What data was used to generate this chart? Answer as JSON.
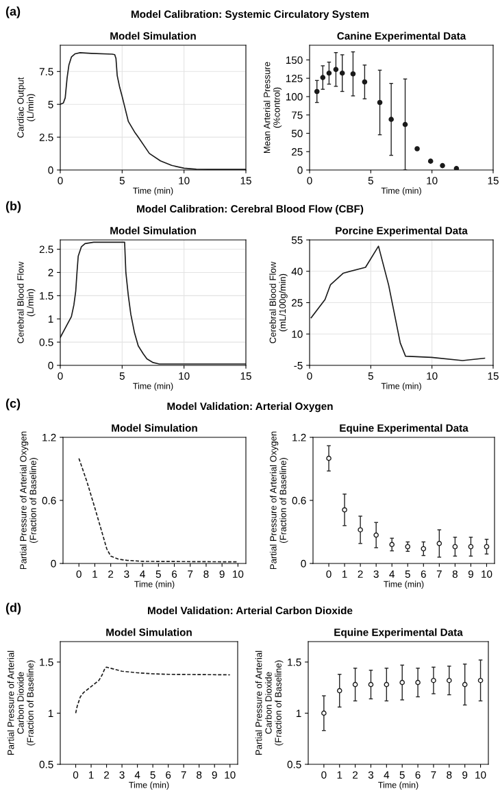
{
  "chart_data": [
    {
      "type": "line",
      "title": "Model Simulation",
      "xlabel": "Time (min)",
      "ylabel": "Cardiac Output\n(L/min)",
      "annotations": [
        "(a)",
        "Model Calibration: Systemic Circulatory System"
      ],
      "xlim": [
        0,
        15
      ],
      "ylim": [
        0,
        9.5
      ],
      "xticks": [
        0,
        5,
        10,
        15
      ],
      "yticks": [
        0,
        2.5,
        5,
        7.5
      ],
      "grid": true,
      "line_style": "solid",
      "series": [
        {
          "color": "#1a1a1a",
          "x": [
            0,
            0.25,
            0.4,
            0.55,
            0.7,
            0.9,
            1.2,
            1.6,
            2.5,
            4.2,
            4.4,
            4.5,
            4.6,
            4.8,
            5,
            5.5,
            6,
            6.3,
            7.2,
            8.1,
            9,
            10,
            11,
            12,
            15
          ],
          "values": [
            5.0,
            5.1,
            5.5,
            7.0,
            8.0,
            8.6,
            8.85,
            8.93,
            8.88,
            8.82,
            8.78,
            8.5,
            7.2,
            6.3,
            5.6,
            3.7,
            2.9,
            2.5,
            1.26,
            0.69,
            0.35,
            0.14,
            0.06,
            0.05,
            0.05
          ]
        }
      ]
    },
    {
      "type": "scatter",
      "title": "Canine Experimental Data",
      "xlabel": "Time (min)",
      "ylabel": "Mean Arterial Pressure\n(%control)",
      "xlim": [
        0,
        15
      ],
      "ylim": [
        0,
        170
      ],
      "xticks": [
        0,
        5,
        10,
        15
      ],
      "yticks": [
        0,
        25,
        50,
        75,
        100,
        125,
        150
      ],
      "grid": false,
      "marker": "circle",
      "series": [
        {
          "color": "#1a1a1a",
          "x": [
            0.6,
            1.08,
            1.59,
            2.15,
            2.67,
            3.55,
            4.5,
            5.74,
            6.67,
            7.81,
            8.79,
            9.89,
            10.86,
            12.0
          ],
          "values": [
            107,
            126,
            132,
            137,
            132,
            131,
            120,
            92,
            69,
            62,
            29,
            12,
            6,
            2
          ],
          "errors": [
            15,
            16,
            15,
            23,
            25,
            30,
            23,
            44,
            49,
            62,
            null,
            null,
            null,
            null
          ]
        }
      ]
    },
    {
      "type": "line",
      "title": "Model Simulation",
      "xlabel": "Time (min)",
      "ylabel": "Cerebral Blood Flow\n(L/min)",
      "annotations": [
        "(b)",
        "Model Calibration: Cerebral Blood Flow (CBF)"
      ],
      "xlim": [
        0,
        15
      ],
      "ylim": [
        0,
        2.7
      ],
      "xticks": [
        0,
        5,
        10,
        15
      ],
      "yticks": [
        0,
        0.5,
        1,
        1.5,
        2,
        2.5
      ],
      "grid": true,
      "line_style": "solid",
      "series": [
        {
          "color": "#1a1a1a",
          "x": [
            0,
            0.5,
            0.9,
            1.1,
            1.25,
            1.35,
            1.45,
            1.7,
            2.0,
            2.7,
            5.2,
            5.3,
            5.5,
            5.7,
            6.0,
            6.3,
            6.7,
            7.0,
            7.5,
            8,
            15
          ],
          "values": [
            0.6,
            0.85,
            1.05,
            1.3,
            1.6,
            2.0,
            2.35,
            2.55,
            2.62,
            2.65,
            2.65,
            2.0,
            1.5,
            1.1,
            0.7,
            0.42,
            0.25,
            0.14,
            0.06,
            0.03,
            0.03
          ]
        }
      ]
    },
    {
      "type": "line",
      "title": "Porcine Experimental Data",
      "xlabel": "Time (min)",
      "ylabel": "Cerebral Blood Flow\n(mL/100g/min)",
      "xlim": [
        0,
        15
      ],
      "ylim": [
        -5,
        55
      ],
      "xticks": [
        0,
        5,
        10,
        15
      ],
      "yticks": [
        -5,
        10,
        25,
        40,
        55
      ],
      "grid": true,
      "line_style": "solid",
      "series": [
        {
          "color": "#1a1a1a",
          "x": [
            0.13,
            1.26,
            1.71,
            2.76,
            4.57,
            5.63,
            6.46,
            7.41,
            7.84,
            9.97,
            12.5,
            14.3
          ],
          "values": [
            17.8,
            26.5,
            33.6,
            39.1,
            41.9,
            52,
            33.4,
            5.7,
            -0.6,
            -1.2,
            -2.7,
            -1.6
          ]
        }
      ]
    },
    {
      "type": "line",
      "title": "Model Simulation",
      "xlabel": "Time (min)",
      "ylabel": "Partial Pressure of Arterial Oxygen\n(Fraction of Baseline)",
      "annotations": [
        "(c)",
        "Model Validation: Arterial Oxygen"
      ],
      "xlim": [
        -1,
        10.5
      ],
      "ylim": [
        0,
        1.2
      ],
      "xticks": [
        0,
        1,
        2,
        3,
        4,
        5,
        6,
        7,
        8,
        9,
        10
      ],
      "yticks": [
        0,
        0.6,
        1.2
      ],
      "grid": false,
      "line_style": "dashed",
      "series": [
        {
          "color": "#1a1a1a",
          "x": [
            0,
            0.5,
            1,
            1.5,
            1.75,
            2,
            2.5,
            3,
            4,
            10
          ],
          "values": [
            1.0,
            0.78,
            0.53,
            0.27,
            0.14,
            0.07,
            0.04,
            0.03,
            0.02,
            0.015
          ]
        }
      ]
    },
    {
      "type": "scatter",
      "title": "Equine Experimental Data",
      "xlabel": "Time (min)",
      "ylabel": "Partial Pressure of Arterial Oxygen\n(Fraction of Baseline)",
      "xlim": [
        -1,
        10.5
      ],
      "ylim": [
        0,
        1.2
      ],
      "xticks": [
        0,
        1,
        2,
        3,
        4,
        5,
        6,
        7,
        8,
        9,
        10
      ],
      "yticks": [
        0,
        0.6,
        1.2
      ],
      "grid": false,
      "marker": "circle",
      "series": [
        {
          "color": "#ffffff",
          "x": [
            0,
            1,
            2,
            3,
            4,
            5,
            6,
            7,
            8,
            9,
            10
          ],
          "values": [
            1.0,
            0.51,
            0.32,
            0.27,
            0.18,
            0.16,
            0.14,
            0.19,
            0.16,
            0.16,
            0.16
          ],
          "errors": [
            0.12,
            0.15,
            0.13,
            0.12,
            0.06,
            0.045,
            0.065,
            0.13,
            0.09,
            0.09,
            0.07
          ]
        }
      ]
    },
    {
      "type": "line",
      "title": "Model Simulation",
      "xlabel": "Time (min)",
      "ylabel": "Partial Pressure of Arterial\nCarbon Dioxide\n(Fraction of Baseline)",
      "annotations": [
        "(d)",
        "Model Validation: Arterial Carbon Dioxide"
      ],
      "xlim": [
        -1,
        10.5
      ],
      "ylim": [
        0.5,
        1.7
      ],
      "xticks": [
        0,
        1,
        2,
        3,
        4,
        5,
        6,
        7,
        8,
        9,
        10
      ],
      "yticks": [
        0.5,
        1,
        1.5
      ],
      "grid": false,
      "line_style": "dashed",
      "series": [
        {
          "color": "#1a1a1a",
          "x": [
            0,
            0.1,
            0.3,
            0.5,
            1,
            1.5,
            1.7,
            1.9,
            2,
            2.5,
            3,
            4,
            5,
            6,
            10
          ],
          "values": [
            1.0,
            1.07,
            1.16,
            1.2,
            1.26,
            1.32,
            1.37,
            1.44,
            1.45,
            1.43,
            1.41,
            1.395,
            1.385,
            1.38,
            1.375
          ]
        }
      ]
    },
    {
      "type": "scatter",
      "title": "Equine Experimental Data",
      "xlabel": "Time (min)",
      "ylabel": "Partial Pressure of Arterial\nCarbon Dioxide\n(Fraction of Baseline)",
      "xlim": [
        -1,
        10.5
      ],
      "ylim": [
        0.5,
        1.7
      ],
      "xticks": [
        0,
        1,
        2,
        3,
        4,
        5,
        6,
        7,
        8,
        9,
        10
      ],
      "yticks": [
        0.5,
        1,
        1.5
      ],
      "grid": false,
      "marker": "circle",
      "series": [
        {
          "color": "#ffffff",
          "x": [
            0,
            1,
            2,
            3,
            4,
            5,
            6,
            7,
            8,
            9,
            10
          ],
          "values": [
            1.0,
            1.22,
            1.28,
            1.28,
            1.28,
            1.3,
            1.3,
            1.32,
            1.32,
            1.28,
            1.32
          ],
          "errors": [
            0.17,
            0.16,
            0.16,
            0.14,
            0.16,
            0.17,
            0.14,
            0.13,
            0.14,
            0.2,
            0.2
          ]
        }
      ]
    }
  ]
}
